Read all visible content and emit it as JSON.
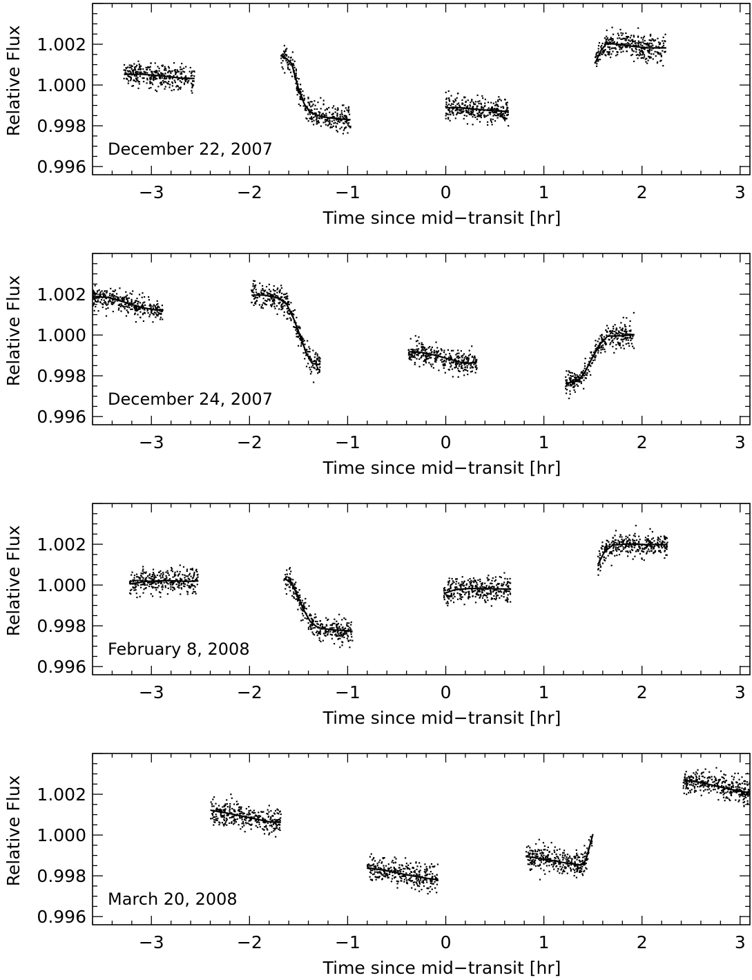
{
  "figure": {
    "panel_count": 4,
    "ink_color": "#000000",
    "background": "#ffffff"
  },
  "chart_data": [
    {
      "type": "scatter",
      "annotation": "December 22, 2007",
      "xlabel": "Time since mid−transit [hr]",
      "ylabel": "Relative Flux",
      "xlim": [
        -3.6,
        3.1
      ],
      "ylim": [
        0.9956,
        1.004
      ],
      "xticks": [
        -3,
        -2,
        -1,
        0,
        1,
        2,
        3
      ],
      "xtick_labels": [
        "−3",
        "−2",
        "−1",
        "0",
        "1",
        "2",
        "3"
      ],
      "yticks": [
        0.996,
        0.998,
        1.0,
        1.002
      ],
      "ytick_labels": [
        "0.996",
        "0.998",
        "1.000",
        "1.002"
      ],
      "grid": false,
      "segments": [
        {
          "x_range": [
            -3.28,
            -2.56
          ],
          "scatter_sigma": 0.0003,
          "model": [
            [
              -3.28,
              1.00052
            ],
            [
              -3.1,
              1.00053
            ],
            [
              -2.9,
              1.00045
            ],
            [
              -2.7,
              1.00034
            ],
            [
              -2.56,
              1.00032
            ]
          ]
        },
        {
          "x_range": [
            -1.68,
            -0.97
          ],
          "scatter_sigma": 0.0003,
          "model": [
            [
              -1.68,
              1.00148
            ],
            [
              -1.62,
              1.00128
            ],
            [
              -1.57,
              1.00105
            ],
            [
              -1.5,
              0.9998
            ],
            [
              -1.44,
              0.99905
            ],
            [
              -1.38,
              0.99866
            ],
            [
              -1.3,
              0.9985
            ],
            [
              -1.2,
              0.9984
            ],
            [
              -1.1,
              0.99834
            ],
            [
              -0.97,
              0.9983
            ]
          ]
        },
        {
          "x_range": [
            0.0,
            0.64
          ],
          "scatter_sigma": 0.0003,
          "model": [
            [
              0.0,
              0.99888
            ],
            [
              0.15,
              0.99888
            ],
            [
              0.3,
              0.99882
            ],
            [
              0.45,
              0.99875
            ],
            [
              0.64,
              0.9987
            ]
          ]
        },
        {
          "x_range": [
            1.52,
            2.24
          ],
          "scatter_sigma": 0.0003,
          "model": [
            [
              1.52,
              1.00105
            ],
            [
              1.58,
              1.00168
            ],
            [
              1.64,
              1.00204
            ],
            [
              1.75,
              1.002
            ],
            [
              1.9,
              1.0019
            ],
            [
              2.05,
              1.00182
            ],
            [
              2.24,
              1.00182
            ]
          ]
        }
      ]
    },
    {
      "type": "scatter",
      "annotation": "December 24, 2007",
      "xlabel": "Time since mid−transit [hr]",
      "ylabel": "Relative Flux",
      "xlim": [
        -3.6,
        3.1
      ],
      "ylim": [
        0.9956,
        1.004
      ],
      "xticks": [
        -3,
        -2,
        -1,
        0,
        1,
        2,
        3
      ],
      "xtick_labels": [
        "−3",
        "−2",
        "−1",
        "0",
        "1",
        "2",
        "3"
      ],
      "yticks": [
        0.996,
        0.998,
        1.0,
        1.002
      ],
      "ytick_labels": [
        "0.996",
        "0.998",
        "1.000",
        "1.002"
      ],
      "grid": false,
      "segments": [
        {
          "x_range": [
            -3.6,
            -2.88
          ],
          "scatter_sigma": 0.0003,
          "model": [
            [
              -3.6,
              1.00188
            ],
            [
              -3.45,
              1.00185
            ],
            [
              -3.3,
              1.00165
            ],
            [
              -3.1,
              1.00135
            ],
            [
              -2.95,
              1.00122
            ],
            [
              -2.88,
              1.00125
            ]
          ]
        },
        {
          "x_range": [
            -1.98,
            -1.28
          ],
          "scatter_sigma": 0.0003,
          "model": [
            [
              -1.98,
              1.00195
            ],
            [
              -1.85,
              1.00196
            ],
            [
              -1.7,
              1.0018
            ],
            [
              -1.62,
              1.0015
            ],
            [
              -1.55,
              1.0008
            ],
            [
              -1.48,
              0.9999
            ],
            [
              -1.42,
              0.9991
            ],
            [
              -1.36,
              0.9986
            ],
            [
              -1.28,
              0.99855
            ]
          ]
        },
        {
          "x_range": [
            -0.38,
            0.32
          ],
          "scatter_sigma": 0.0003,
          "model": [
            [
              -0.38,
              0.99918
            ],
            [
              -0.25,
              0.99915
            ],
            [
              -0.1,
              0.999
            ],
            [
              0.05,
              0.9988
            ],
            [
              0.2,
              0.9986
            ],
            [
              0.32,
              0.99868
            ]
          ]
        },
        {
          "x_range": [
            1.22,
            1.92
          ],
          "scatter_sigma": 0.0003,
          "model": [
            [
              1.22,
              0.99762
            ],
            [
              1.35,
              0.99775
            ],
            [
              1.42,
              0.9982
            ],
            [
              1.5,
              0.99895
            ],
            [
              1.58,
              0.9996
            ],
            [
              1.65,
              0.99995
            ],
            [
              1.8,
              0.99996
            ],
            [
              1.92,
              1.00002
            ]
          ]
        }
      ]
    },
    {
      "type": "scatter",
      "annotation": "February 8, 2008",
      "xlabel": "Time since mid−transit [hr]",
      "ylabel": "Relative Flux",
      "xlim": [
        -3.6,
        3.1
      ],
      "ylim": [
        0.9956,
        1.004
      ],
      "xticks": [
        -3,
        -2,
        -1,
        0,
        1,
        2,
        3
      ],
      "xtick_labels": [
        "−3",
        "−2",
        "−1",
        "0",
        "1",
        "2",
        "3"
      ],
      "yticks": [
        0.996,
        0.998,
        1.0,
        1.002
      ],
      "ytick_labels": [
        "0.996",
        "0.998",
        "1.000",
        "1.002"
      ],
      "grid": false,
      "segments": [
        {
          "x_range": [
            -3.22,
            -2.52
          ],
          "scatter_sigma": 0.0003,
          "model": [
            [
              -3.22,
              1.00005
            ],
            [
              -3.05,
              1.00018
            ],
            [
              -2.85,
              1.00022
            ],
            [
              -2.65,
              1.00018
            ],
            [
              -2.52,
              1.0002
            ]
          ]
        },
        {
          "x_range": [
            -1.65,
            -0.95
          ],
          "scatter_sigma": 0.0003,
          "model": [
            [
              -1.65,
              1.00032
            ],
            [
              -1.58,
              1.00015
            ],
            [
              -1.52,
              0.9996
            ],
            [
              -1.45,
              0.9988
            ],
            [
              -1.38,
              0.9982
            ],
            [
              -1.3,
              0.9979
            ],
            [
              -1.15,
              0.9978
            ],
            [
              -0.95,
              0.99774
            ]
          ]
        },
        {
          "x_range": [
            -0.02,
            0.66
          ],
          "scatter_sigma": 0.0003,
          "model": [
            [
              -0.02,
              0.99958
            ],
            [
              0.1,
              0.99978
            ],
            [
              0.25,
              0.99983
            ],
            [
              0.45,
              0.99982
            ],
            [
              0.66,
              0.9998
            ]
          ]
        },
        {
          "x_range": [
            1.55,
            2.26
          ],
          "scatter_sigma": 0.0003,
          "model": [
            [
              1.55,
              1.001
            ],
            [
              1.62,
              1.00165
            ],
            [
              1.7,
              1.00195
            ],
            [
              1.85,
              1.00202
            ],
            [
              2.05,
              1.00198
            ],
            [
              2.26,
              1.00198
            ]
          ]
        }
      ]
    },
    {
      "type": "scatter",
      "annotation": "March 20, 2008",
      "xlabel": "Time since mid−transit [hr]",
      "ylabel": "Relative Flux",
      "xlim": [
        -3.6,
        3.1
      ],
      "ylim": [
        0.9956,
        1.004
      ],
      "xticks": [
        -3,
        -2,
        -1,
        0,
        1,
        2,
        3
      ],
      "xtick_labels": [
        "−3",
        "−2",
        "−1",
        "0",
        "1",
        "2",
        "3"
      ],
      "yticks": [
        0.996,
        0.998,
        1.0,
        1.002
      ],
      "ytick_labels": [
        "0.996",
        "0.998",
        "1.000",
        "1.002"
      ],
      "grid": false,
      "segments": [
        {
          "x_range": [
            -2.4,
            -1.68
          ],
          "scatter_sigma": 0.0003,
          "model": [
            [
              -2.4,
              1.00122
            ],
            [
              -2.2,
              1.00105
            ],
            [
              -2.0,
              1.00085
            ],
            [
              -1.8,
              1.00065
            ],
            [
              -1.68,
              1.00062
            ]
          ]
        },
        {
          "x_range": [
            -0.8,
            -0.08
          ],
          "scatter_sigma": 0.0003,
          "model": [
            [
              -0.8,
              0.9984
            ],
            [
              -0.6,
              0.99825
            ],
            [
              -0.4,
              0.99805
            ],
            [
              -0.2,
              0.99788
            ],
            [
              -0.08,
              0.9978
            ]
          ]
        },
        {
          "x_range": [
            0.82,
            1.5
          ],
          "scatter_sigma": 0.0003,
          "model": [
            [
              0.82,
              0.99895
            ],
            [
              1.0,
              0.99882
            ],
            [
              1.2,
              0.99865
            ],
            [
              1.38,
              0.99852
            ],
            [
              1.43,
              0.9988
            ],
            [
              1.5,
              1.00005
            ]
          ]
        },
        {
          "x_range": [
            2.42,
            3.1
          ],
          "scatter_sigma": 0.0003,
          "model": [
            [
              2.42,
              1.0027
            ],
            [
              2.6,
              1.00258
            ],
            [
              2.8,
              1.00235
            ],
            [
              3.0,
              1.00215
            ],
            [
              3.1,
              1.00208
            ]
          ]
        }
      ]
    }
  ]
}
